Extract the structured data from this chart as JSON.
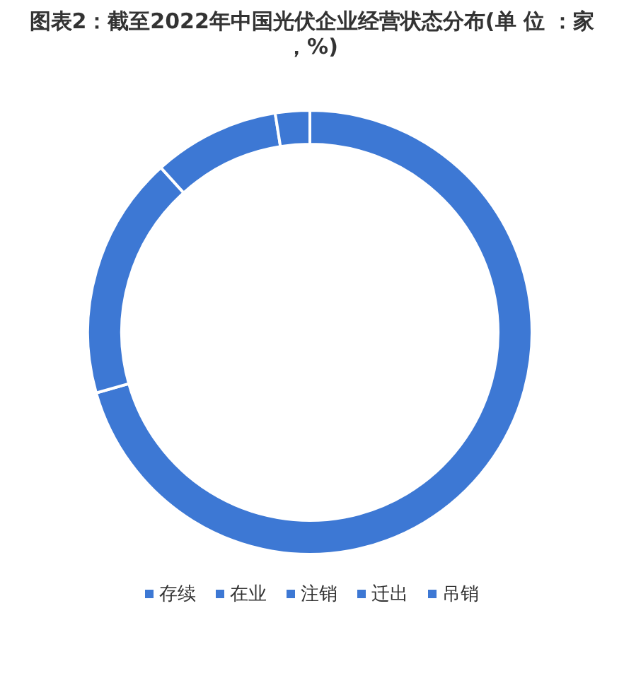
{
  "chart_data": {
    "type": "donut",
    "title": "图表2：截至2022年中国光伏企业经营状态分布(单 位 ：家，%)",
    "categories": [
      "存续",
      "在业",
      "注销",
      "迁出",
      "吊销"
    ],
    "values": [
      70.6,
      17.7,
      9.2,
      null,
      2.5
    ],
    "colors": [
      "#3d78d4",
      "#3d78d4",
      "#3d78d4",
      "#3d78d4",
      "#3d78d4"
    ],
    "legend": "bottom"
  }
}
